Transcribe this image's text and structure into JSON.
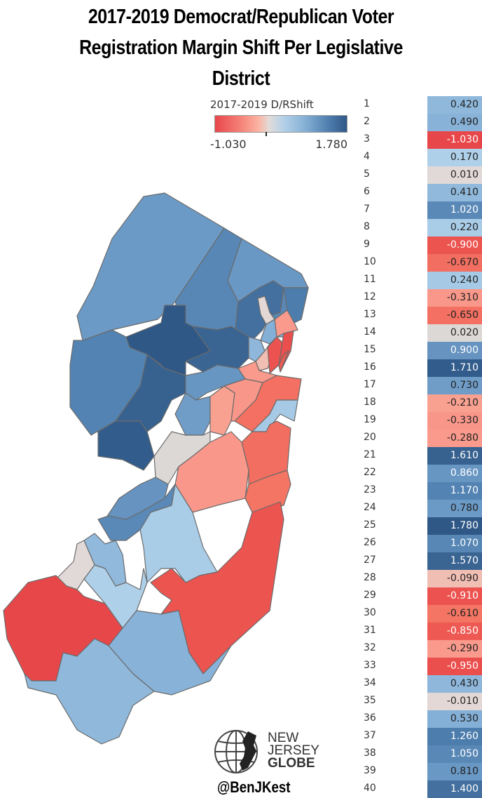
{
  "title": {
    "line1": "2017-2019 Democrat/Republican Voter",
    "line2": "Registration Margin Shift Per Legislative",
    "line3": "District"
  },
  "legend": {
    "title": "2017-2019 D/RShift",
    "min_label": "-1.030",
    "max_label": "1.780",
    "colors": {
      "min": "#e8474a",
      "neutral": "#e2dbd8",
      "max": "#2f5886"
    }
  },
  "logo": {
    "line1": "NEW",
    "line2": "JERSEY",
    "line3": "GLOBE",
    "handle": "@BenJKest",
    "icon": "globe-with-nj-icon"
  },
  "chart_data": {
    "type": "heatmap",
    "title": "2017-2019 Democrat/Republican Voter Registration Margin Shift Per Legislative District",
    "legend_title": "2017-2019 D/RShift",
    "color_range": [
      -1.03,
      1.78
    ],
    "map": "New Jersey legislative districts choropleth",
    "categories": [
      "1",
      "2",
      "3",
      "4",
      "5",
      "6",
      "7",
      "8",
      "9",
      "10",
      "11",
      "12",
      "13",
      "14",
      "15",
      "16",
      "17",
      "18",
      "19",
      "20",
      "21",
      "22",
      "23",
      "24",
      "25",
      "26",
      "27",
      "28",
      "29",
      "30",
      "31",
      "32",
      "33",
      "34",
      "35",
      "36",
      "37",
      "38",
      "39",
      "40"
    ],
    "values": [
      0.42,
      0.49,
      -1.03,
      0.17,
      0.01,
      0.41,
      1.02,
      0.22,
      -0.9,
      -0.67,
      0.24,
      -0.31,
      -0.65,
      0.02,
      0.9,
      1.71,
      0.73,
      -0.21,
      -0.33,
      -0.28,
      1.61,
      0.86,
      1.17,
      0.78,
      1.78,
      1.07,
      1.57,
      -0.09,
      -0.91,
      -0.61,
      -0.85,
      -0.29,
      -0.95,
      0.43,
      -0.01,
      0.53,
      1.26,
      1.05,
      0.81,
      1.4
    ]
  },
  "table": {
    "rows": [
      {
        "district": "1",
        "value": "0.420",
        "color": "#8fb8db",
        "text": "#222"
      },
      {
        "district": "2",
        "value": "0.490",
        "color": "#88b2d8",
        "text": "#222"
      },
      {
        "district": "3",
        "value": "-1.030",
        "color": "#e8474a",
        "text": "#fff"
      },
      {
        "district": "4",
        "value": "0.170",
        "color": "#afd0e9",
        "text": "#222"
      },
      {
        "district": "5",
        "value": "0.010",
        "color": "#e1d9d7",
        "text": "#222"
      },
      {
        "district": "6",
        "value": "0.410",
        "color": "#90b9dc",
        "text": "#222"
      },
      {
        "district": "7",
        "value": "1.020",
        "color": "#5b89b7",
        "text": "#fff"
      },
      {
        "district": "8",
        "value": "0.220",
        "color": "#a9cce7",
        "text": "#222"
      },
      {
        "district": "9",
        "value": "-0.900",
        "color": "#ec5450",
        "text": "#fff"
      },
      {
        "district": "10",
        "value": "-0.670",
        "color": "#f26e60",
        "text": "#222"
      },
      {
        "district": "11",
        "value": "0.240",
        "color": "#a6cae6",
        "text": "#222"
      },
      {
        "district": "12",
        "value": "-0.310",
        "color": "#f9988a",
        "text": "#222"
      },
      {
        "district": "13",
        "value": "-0.650",
        "color": "#f37062",
        "text": "#222"
      },
      {
        "district": "14",
        "value": "0.020",
        "color": "#dcd8d6",
        "text": "#222"
      },
      {
        "district": "15",
        "value": "0.900",
        "color": "#6693c0",
        "text": "#fff"
      },
      {
        "district": "16",
        "value": "1.710",
        "color": "#325c8b",
        "text": "#fff"
      },
      {
        "district": "17",
        "value": "0.730",
        "color": "#709dc8",
        "text": "#222"
      },
      {
        "district": "18",
        "value": "-0.210",
        "color": "#f9a191",
        "text": "#222"
      },
      {
        "district": "19",
        "value": "-0.330",
        "color": "#f8968a",
        "text": "#222"
      },
      {
        "district": "20",
        "value": "-0.280",
        "color": "#f99a8c",
        "text": "#222"
      },
      {
        "district": "21",
        "value": "1.610",
        "color": "#37618f",
        "text": "#fff"
      },
      {
        "district": "22",
        "value": "0.860",
        "color": "#6896c3",
        "text": "#fff"
      },
      {
        "district": "23",
        "value": "1.170",
        "color": "#5383b2",
        "text": "#fff"
      },
      {
        "district": "24",
        "value": "0.780",
        "color": "#6c9ac6",
        "text": "#222"
      },
      {
        "district": "25",
        "value": "1.780",
        "color": "#2f5886",
        "text": "#fff"
      },
      {
        "district": "26",
        "value": "1.070",
        "color": "#5887b5",
        "text": "#fff"
      },
      {
        "district": "27",
        "value": "1.570",
        "color": "#3a6492",
        "text": "#fff"
      },
      {
        "district": "28",
        "value": "-0.090",
        "color": "#f1beb4",
        "text": "#222"
      },
      {
        "district": "29",
        "value": "-0.910",
        "color": "#ec5350",
        "text": "#fff"
      },
      {
        "district": "30",
        "value": "-0.610",
        "color": "#f47563",
        "text": "#222"
      },
      {
        "district": "31",
        "value": "-0.850",
        "color": "#ee5a53",
        "text": "#fff"
      },
      {
        "district": "32",
        "value": "-0.290",
        "color": "#f99a8c",
        "text": "#222"
      },
      {
        "district": "33",
        "value": "-0.950",
        "color": "#eb4f4d",
        "text": "#fff"
      },
      {
        "district": "34",
        "value": "0.430",
        "color": "#8eb7db",
        "text": "#222"
      },
      {
        "district": "35",
        "value": "-0.010",
        "color": "#e4d8d6",
        "text": "#222"
      },
      {
        "district": "36",
        "value": "0.530",
        "color": "#84afd6",
        "text": "#222"
      },
      {
        "district": "37",
        "value": "1.260",
        "color": "#4d7dad",
        "text": "#fff"
      },
      {
        "district": "38",
        "value": "1.050",
        "color": "#5988b6",
        "text": "#fff"
      },
      {
        "district": "39",
        "value": "0.810",
        "color": "#6a98c5",
        "text": "#222"
      },
      {
        "district": "40",
        "value": "1.400",
        "color": "#44709f",
        "text": "#fff"
      }
    ]
  }
}
